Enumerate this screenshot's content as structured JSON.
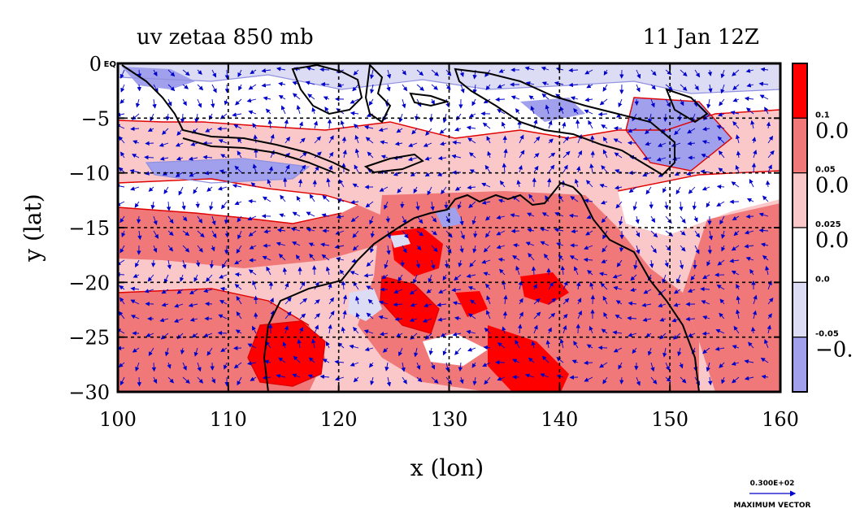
{
  "chart_data": {
    "type": "heatmap",
    "title_left": "uv zetaa 850 mb",
    "title_right": "11 Jan 12Z",
    "xlabel": "x (lon)",
    "ylabel": "y (lat)",
    "xlim": [
      100,
      160
    ],
    "ylim": [
      -30,
      0
    ],
    "x_ticks": [
      "100",
      "110",
      "120",
      "130",
      "140",
      "150",
      "160"
    ],
    "y_ticks": [
      "0 EQ",
      "−5",
      "−10",
      "−15",
      "−20",
      "−25",
      "−30"
    ],
    "grid_x": [
      110,
      120,
      130,
      140,
      150
    ],
    "grid_y": [
      -5,
      -10,
      -15,
      -20,
      -25
    ],
    "grid": true,
    "colorbar": {
      "levels": [
        {
          "small": "0.1",
          "big": "0.0",
          "color": "#ff0000"
        },
        {
          "small": "0.05",
          "big": "0.0",
          "color": "#f07878"
        },
        {
          "small": "0.025",
          "big": "0.0",
          "color": "#fac8c8"
        },
        {
          "small": "0.0",
          "big": "",
          "color": "#ffffff"
        },
        {
          "small": "-0.05",
          "big": "−0.",
          "color": "#dcdcf5"
        },
        {
          "small": "",
          "big": "",
          "color": "#a0a0ec"
        }
      ]
    },
    "colors": {
      "strong_positive": "#ff0000",
      "positive": "#f07878",
      "weak_positive": "#fac8c8",
      "neutral": "#ffffff",
      "weak_negative": "#dcdcf5",
      "negative": "#a0a0ec",
      "vectors": "#0000cc",
      "coast": "#000000"
    },
    "max_vector": {
      "value": "0.300E+02",
      "label": "MAXIMUM VECTOR"
    }
  }
}
